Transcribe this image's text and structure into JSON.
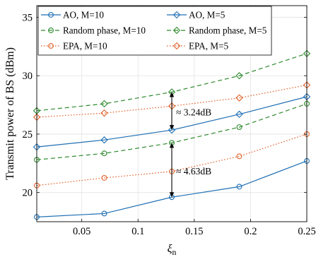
{
  "chart_data": {
    "type": "line",
    "xlabel": "ξ",
    "xlabel_sub": "n",
    "ylabel": "Transmit power of BS (dBm)",
    "xlim": [
      0.01,
      0.25
    ],
    "ylim": [
      17.5,
      36
    ],
    "xticks": [
      "0.05",
      "0.1",
      "0.15",
      "0.2",
      "0.25"
    ],
    "xtick_values": [
      0.05,
      0.1,
      0.15,
      0.2,
      0.25
    ],
    "yticks": [
      "20",
      "25",
      "30",
      "35"
    ],
    "ytick_values": [
      20,
      25,
      30,
      35
    ],
    "grid": true,
    "legend_placement": "top",
    "x": [
      0.01,
      0.07,
      0.13,
      0.19,
      0.25
    ],
    "series": [
      {
        "name": "AO, M=10",
        "values": [
          17.9,
          18.2,
          19.6,
          20.5,
          22.7
        ],
        "color": "#1f6fb4",
        "dash": "solid",
        "marker": "circle"
      },
      {
        "name": "AO, M=5",
        "values": [
          23.9,
          24.5,
          25.35,
          26.7,
          28.2
        ],
        "color": "#1f6fb4",
        "dash": "solid",
        "marker": "diamond"
      },
      {
        "name": "Random phase, M=10",
        "values": [
          22.8,
          23.35,
          24.25,
          25.6,
          27.6
        ],
        "color": "#2e8b2e",
        "dash": "dashed",
        "marker": "circle"
      },
      {
        "name": "Random phase, M=5",
        "values": [
          27.0,
          27.6,
          28.6,
          30.0,
          31.9
        ],
        "color": "#2e8b2e",
        "dash": "dashed",
        "marker": "diamond"
      },
      {
        "name": "EPA, M=10",
        "values": [
          20.6,
          21.25,
          21.8,
          23.1,
          25.0
        ],
        "color": "#e0622b",
        "dash": "dotted",
        "marker": "circle"
      },
      {
        "name": "EPA, M=5",
        "values": [
          26.45,
          26.8,
          27.4,
          28.1,
          29.2
        ],
        "color": "#e0622b",
        "dash": "dotted",
        "marker": "diamond"
      }
    ],
    "annotations": [
      {
        "text": "≈ 3.24dB",
        "x": 0.13,
        "from": 25.35,
        "to": 28.6
      },
      {
        "text": "≈ 4.63dB",
        "x": 0.13,
        "from": 19.6,
        "to": 24.25
      }
    ]
  }
}
